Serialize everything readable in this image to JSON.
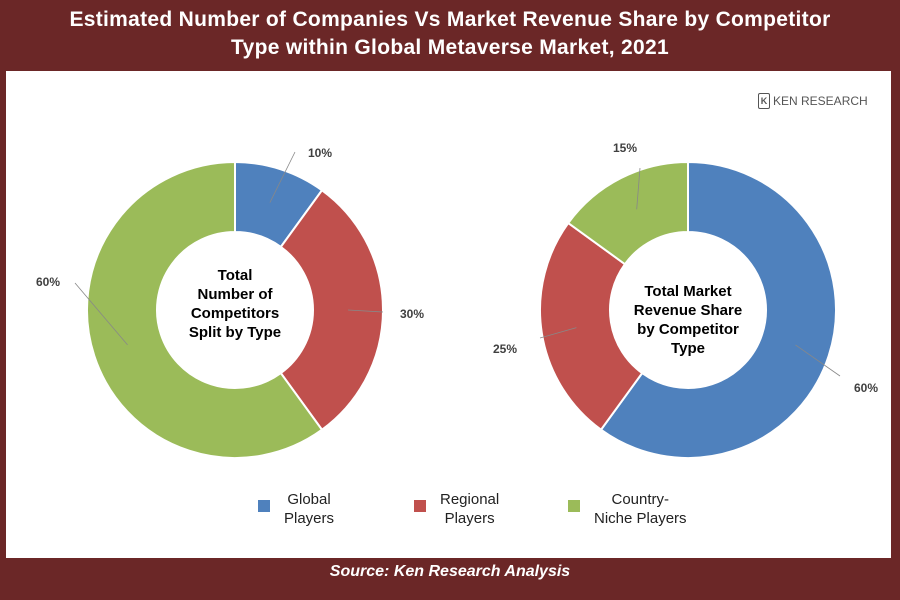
{
  "title_line1": "Estimated Number of Companies Vs Market Revenue Share by Competitor",
  "title_line2": "Type within Global Metaverse Market, 2021",
  "logo_text": "KEN RESEARCH",
  "footer": "Source: Ken Research Analysis",
  "chart_data": [
    {
      "type": "pie",
      "style": "donut",
      "center_label_lines": [
        "Total",
        "Number of",
        "Competitors",
        "Split by Type"
      ],
      "categories": [
        "Global Players",
        "Regional Players",
        "Country-Niche Players"
      ],
      "values": [
        10,
        30,
        60
      ],
      "labels": [
        "10%",
        "30%",
        "60%"
      ]
    },
    {
      "type": "pie",
      "style": "donut",
      "center_label_lines": [
        "Total Market",
        "Revenue Share",
        "by Competitor",
        "Type"
      ],
      "categories": [
        "Global Players",
        "Regional Players",
        "Country-Niche Players"
      ],
      "values": [
        60,
        25,
        15
      ],
      "labels": [
        "60%",
        "25%",
        "15%"
      ]
    }
  ],
  "legend": [
    {
      "line1": "Global",
      "line2": "Players",
      "color": "#4f81bd"
    },
    {
      "line1": "Regional",
      "line2": "Players",
      "color": "#c0504d"
    },
    {
      "line1": "Country-",
      "line2": "Niche Players",
      "color": "#9bbb59"
    }
  ]
}
